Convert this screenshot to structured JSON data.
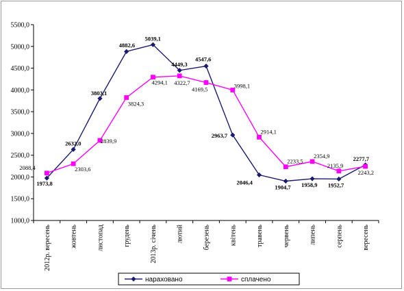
{
  "chart_data": {
    "type": "line",
    "title": "",
    "xlabel": "",
    "ylabel": "",
    "ylim": [
      1000,
      5500
    ],
    "ytick_step": 500,
    "grid": false,
    "legend_position": "bottom",
    "categories": [
      "2012р. вересень",
      "жовтень",
      "листопад",
      "грудень",
      "2013р. січень",
      "лютий",
      "березень",
      "квітень",
      "травень",
      "червень",
      "липень",
      "серпень",
      "вересень"
    ],
    "series": [
      {
        "name": "нараховано",
        "color": "#1a1a6e",
        "marker": "diamond",
        "values": [
          1973.8,
          2632.0,
          3803.1,
          4882.6,
          5039.1,
          4449.3,
          4547.6,
          2963.7,
          2046.4,
          1904.7,
          1958.9,
          1952.7,
          2277.7
        ],
        "labels": [
          "1973,8",
          "2632,0",
          "3803,1",
          "4882,6",
          "5039,1",
          "4449,3",
          "4547,6",
          "2963,7",
          "2046,4",
          "1904,7",
          "1958,9",
          "1952,7",
          "2277,7"
        ]
      },
      {
        "name": "сплачено",
        "color": "#ff00ff",
        "marker": "square",
        "values": [
          2088.4,
          2303.6,
          2839.9,
          3824.3,
          4294.1,
          4322.7,
          4169.5,
          3998.1,
          2914.1,
          2233.5,
          2354.9,
          2135.9,
          2243.2
        ],
        "labels": [
          "2088,4",
          "2303,6",
          "2839,9",
          "3824,3",
          "4294,1",
          "4322,7",
          "4169,5",
          "3998,1",
          "2914,1",
          "2233,5",
          "2354,9",
          "2135,9",
          "2243,2"
        ]
      }
    ]
  }
}
